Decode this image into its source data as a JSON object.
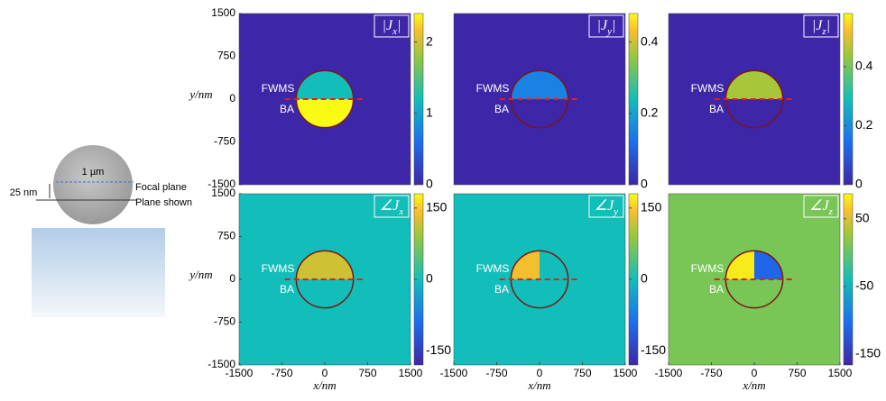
{
  "illustration": {
    "diameter": "1 µm",
    "offset": "25 nm",
    "focal_plane": "Focal plane",
    "plane_shown": "Plane shown"
  },
  "chart_data": [
    {
      "type": "heatmap",
      "label": [
        "|J",
        "x",
        "|"
      ],
      "xlim": [
        -1500,
        1500
      ],
      "ylim": [
        -1500,
        1500
      ],
      "yticks": [
        -1500,
        -750,
        0,
        750,
        1500
      ],
      "ylabel": "y/nm",
      "clim": [
        0,
        2.4
      ],
      "cticks": [
        0,
        1,
        2
      ],
      "radius": 500,
      "background": 0,
      "upper_left": 1.2,
      "upper_right": 1.2,
      "lower": 2.4,
      "annotations": [
        "FWMS",
        "BA"
      ]
    },
    {
      "type": "heatmap",
      "label": [
        "|J",
        "y",
        "|"
      ],
      "xlim": [
        -1500,
        1500
      ],
      "ylim": [
        -1500,
        1500
      ],
      "clim": [
        0,
        0.48
      ],
      "cticks": [
        0,
        0.2,
        0.4
      ],
      "radius": 500,
      "background": 0,
      "upper_left": 0.15,
      "upper_right": 0.15,
      "lower": 0,
      "annotations": [
        "FWMS",
        "BA"
      ]
    },
    {
      "type": "heatmap",
      "label": [
        "|J",
        "z",
        "|"
      ],
      "xlim": [
        -1500,
        1500
      ],
      "ylim": [
        -1500,
        1500
      ],
      "clim": [
        0,
        0.58
      ],
      "cticks": [
        0,
        0.2,
        0.4
      ],
      "radius": 500,
      "background": 0,
      "upper_left": 0.45,
      "upper_right": 0.45,
      "lower": 0,
      "annotations": [
        "FWMS",
        "BA"
      ]
    },
    {
      "type": "heatmap",
      "label": [
        "∠J",
        "x"
      ],
      "xlim": [
        -1500,
        1500
      ],
      "ylim": [
        -1500,
        1500
      ],
      "xticks": [
        -1500,
        -750,
        0,
        750,
        1500
      ],
      "yticks": [
        -1500,
        -750,
        0,
        750,
        1500
      ],
      "xlabel": "x/nm",
      "ylabel": "y/nm",
      "clim": [
        -180,
        180
      ],
      "cticks": [
        -150,
        0,
        150
      ],
      "radius": 500,
      "background": 0,
      "upper_left": 120,
      "upper_right": 120,
      "lower": 0,
      "annotations": [
        "FWMS",
        "BA"
      ]
    },
    {
      "type": "heatmap",
      "label": [
        "∠J",
        "y"
      ],
      "xlim": [
        -1500,
        1500
      ],
      "ylim": [
        -1500,
        1500
      ],
      "xticks": [
        -1500,
        -750,
        0,
        750,
        1500
      ],
      "xlabel": "x/nm",
      "clim": [
        -180,
        180
      ],
      "cticks": [
        -150,
        0,
        150
      ],
      "radius": 500,
      "background": 0,
      "upper_left": 140,
      "upper_right": 0,
      "lower": 0,
      "annotations": [
        "FWMS",
        "BA"
      ]
    },
    {
      "type": "heatmap",
      "label": [
        "∠J",
        "z"
      ],
      "xlim": [
        -1500,
        1500
      ],
      "ylim": [
        -1500,
        1500
      ],
      "xticks": [
        -1500,
        -750,
        0,
        750,
        1500
      ],
      "xlabel": "x/nm",
      "clim": [
        -166,
        87
      ],
      "cticks": [
        -150,
        -50,
        50
      ],
      "radius": 500,
      "background": 10,
      "upper_left": 80,
      "upper_right": -110,
      "lower": 10,
      "annotations": [
        "FWMS",
        "BA"
      ]
    }
  ]
}
